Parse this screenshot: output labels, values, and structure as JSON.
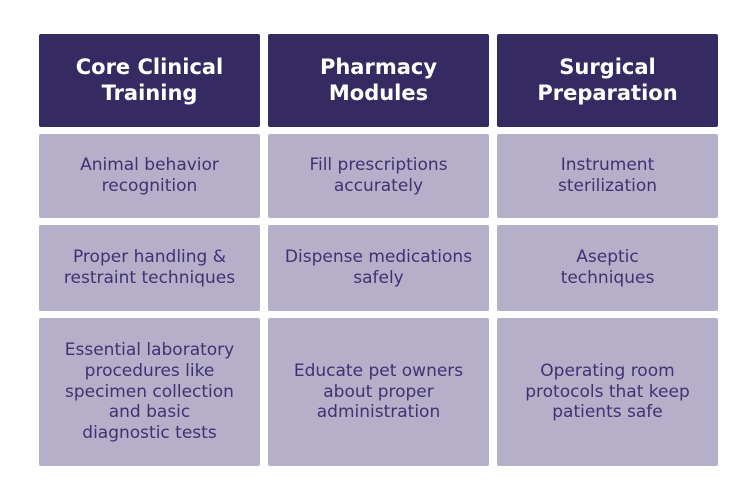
{
  "table": {
    "columns": [
      {
        "header": "Core Clinical\nTraining",
        "cells": [
          "Animal behavior\nrecognition",
          "Proper handling &\nrestraint techniques",
          "Essential laboratory\nprocedures like\nspecimen collection\nand basic\ndiagnostic tests"
        ]
      },
      {
        "header": "Pharmacy\nModules",
        "cells": [
          "Fill prescriptions\naccurately",
          "Dispense medications\nsafely",
          "Educate pet owners\nabout proper\nadministration"
        ]
      },
      {
        "header": "Surgical\nPreparation",
        "cells": [
          "Instrument\nsterilization",
          "Aseptic\ntechniques",
          "Operating room\nprotocols that keep\npatients safe"
        ]
      }
    ],
    "colors": {
      "header_bg": "#362a62",
      "header_text": "#ffffff",
      "cell_bg": "#b6afc9",
      "cell_text": "#3e3272",
      "page_bg": "#ffffff"
    }
  }
}
